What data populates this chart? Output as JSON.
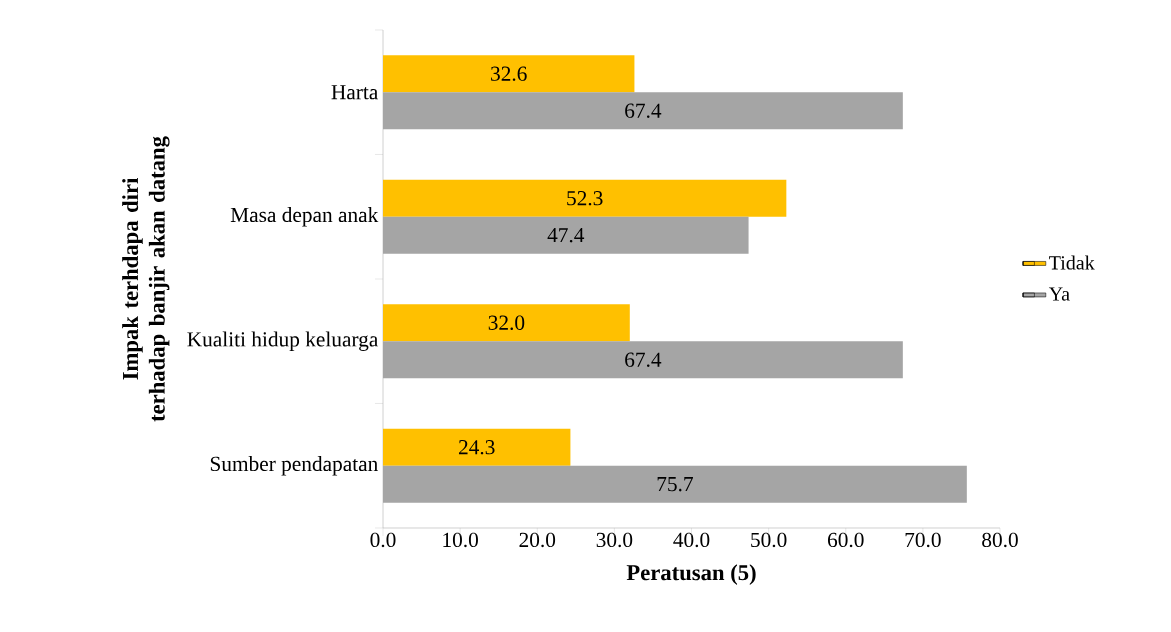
{
  "chart_data": {
    "type": "bar",
    "orientation": "horizontal",
    "xlabel": "Peratusan (5)",
    "ylabel": "Impak terhdapa diri terhadap banjir akan datang",
    "categories": [
      "Harta",
      "Masa depan anak",
      "Kualiti hidup keluarga",
      "Sumber pendapatan"
    ],
    "series": [
      {
        "name": "Tidak",
        "color": "#ffc000",
        "values": [
          32.6,
          52.3,
          32.0,
          24.3
        ],
        "value_labels": [
          "32.6",
          "52.3",
          "32.0",
          "24.3"
        ]
      },
      {
        "name": "Ya",
        "color": "#a5a5a5",
        "values": [
          67.4,
          47.4,
          67.4,
          75.7
        ],
        "value_labels": [
          "67.4",
          "47.4",
          "67.4",
          "75.7"
        ]
      }
    ],
    "xlim": [
      0,
      80
    ],
    "xticks": [
      {
        "value": 0,
        "label": "0.0"
      },
      {
        "value": 10,
        "label": "10.0"
      },
      {
        "value": 20,
        "label": "20.0"
      },
      {
        "value": 30,
        "label": "30.0"
      },
      {
        "value": 40,
        "label": "40.0"
      },
      {
        "value": 50,
        "label": "50.0"
      },
      {
        "value": 60,
        "label": "60.0"
      },
      {
        "value": 70,
        "label": "70.0"
      },
      {
        "value": 80,
        "label": "80.0"
      }
    ],
    "legend": "right",
    "grid": false
  }
}
